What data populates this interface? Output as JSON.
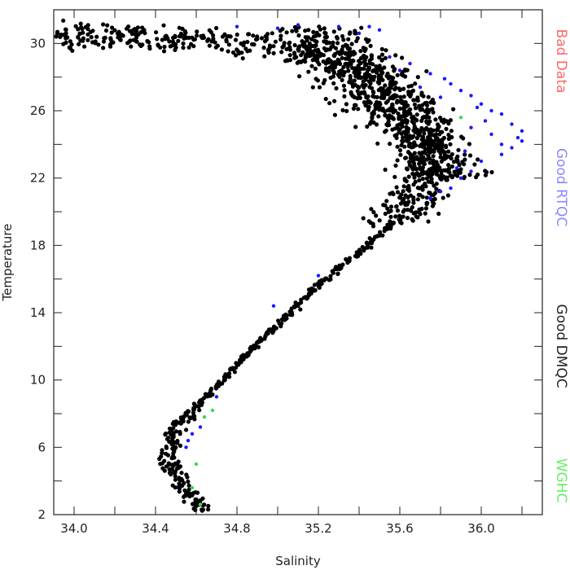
{
  "chart_data": {
    "type": "scatter",
    "xlabel": "Salinity",
    "ylabel": "Temperature",
    "xlim": [
      33.9,
      36.3
    ],
    "ylim": [
      2,
      32
    ],
    "xticks": [
      "34.0",
      "34.4",
      "34.8",
      "35.2",
      "35.6",
      "36.0"
    ],
    "xtick_values": [
      34.0,
      34.4,
      34.8,
      35.2,
      35.6,
      36.0
    ],
    "xminor": [
      34.2,
      34.6,
      35.0,
      35.4,
      35.8,
      36.2
    ],
    "yticks": [
      "2",
      "6",
      "10",
      "14",
      "18",
      "22",
      "26",
      "30"
    ],
    "ytick_values": [
      2,
      6,
      10,
      14,
      18,
      22,
      26,
      30
    ],
    "yminor": [
      4,
      8,
      12,
      16,
      20,
      24,
      28
    ],
    "grid": false,
    "legend_position": "right-outside-vertical",
    "legend": [
      {
        "label": "Bad Data",
        "color": "#ff6666"
      },
      {
        "label": "Good RTQC",
        "color": "#8888ff"
      },
      {
        "label": "Good DMQC",
        "color": "#222222"
      },
      {
        "label": "WGHC",
        "color": "#66ee66"
      }
    ],
    "series": [
      {
        "name": "Good RTQC",
        "color": "#1a1aff",
        "points": [
          [
            35.1,
            31.1
          ],
          [
            35.3,
            31.0
          ],
          [
            35.45,
            31.0
          ],
          [
            35.5,
            30.8
          ],
          [
            35.65,
            28.8
          ],
          [
            35.75,
            28.2
          ],
          [
            35.85,
            27.6
          ],
          [
            35.9,
            27.2
          ],
          [
            35.95,
            26.9
          ],
          [
            36.0,
            26.4
          ],
          [
            36.05,
            26.0
          ],
          [
            36.1,
            25.8
          ],
          [
            36.15,
            25.2
          ],
          [
            36.2,
            24.8
          ],
          [
            36.2,
            24.2
          ],
          [
            36.15,
            23.8
          ],
          [
            36.1,
            23.4
          ],
          [
            36.0,
            23.0
          ],
          [
            35.95,
            22.4
          ],
          [
            35.9,
            22.0
          ],
          [
            35.85,
            21.4
          ],
          [
            35.95,
            25.0
          ],
          [
            36.05,
            24.6
          ],
          [
            36.1,
            24.0
          ],
          [
            35.8,
            26.8
          ],
          [
            35.7,
            27.4
          ],
          [
            35.6,
            28.4
          ],
          [
            35.55,
            29.2
          ],
          [
            35.2,
            16.2
          ],
          [
            34.98,
            14.4
          ],
          [
            34.62,
            7.2
          ],
          [
            34.58,
            6.8
          ],
          [
            34.56,
            6.4
          ],
          [
            34.55,
            6.0
          ],
          [
            34.7,
            9.0
          ],
          [
            35.75,
            20.8
          ],
          [
            35.8,
            21.2
          ],
          [
            35.88,
            22.6
          ],
          [
            36.02,
            25.4
          ],
          [
            35.98,
            26.2
          ],
          [
            35.4,
            30.6
          ],
          [
            35.0,
            30.9
          ],
          [
            34.8,
            31.0
          ],
          [
            35.92,
            23.6
          ],
          [
            36.18,
            24.4
          ],
          [
            35.82,
            27.9
          ]
        ]
      },
      {
        "name": "WGHC",
        "color": "#33dd55",
        "points": [
          [
            34.68,
            8.2
          ],
          [
            34.64,
            7.8
          ],
          [
            34.6,
            5.0
          ],
          [
            34.58,
            3.6
          ],
          [
            34.62,
            2.6
          ],
          [
            35.9,
            25.6
          ]
        ]
      }
    ],
    "good_dmqc_curve": [
      [
        34.63,
        2.2
      ],
      [
        34.6,
        2.7
      ],
      [
        34.56,
        3.3
      ],
      [
        34.52,
        4.0
      ],
      [
        34.49,
        4.7
      ],
      [
        34.47,
        5.4
      ],
      [
        34.47,
        6.1
      ],
      [
        34.49,
        6.8
      ],
      [
        34.53,
        7.5
      ],
      [
        34.58,
        8.2
      ],
      [
        34.65,
        9.0
      ],
      [
        34.72,
        9.8
      ],
      [
        34.78,
        10.6
      ],
      [
        34.84,
        11.4
      ],
      [
        34.9,
        12.2
      ],
      [
        34.97,
        13.0
      ],
      [
        35.04,
        13.8
      ],
      [
        35.11,
        14.6
      ],
      [
        35.18,
        15.4
      ],
      [
        35.26,
        16.2
      ],
      [
        35.34,
        17.0
      ],
      [
        35.42,
        17.8
      ],
      [
        35.5,
        18.6
      ],
      [
        35.57,
        19.4
      ],
      [
        35.64,
        20.2
      ],
      [
        35.7,
        21.0
      ],
      [
        35.72,
        21.8
      ],
      [
        35.73,
        22.6
      ],
      [
        35.74,
        23.4
      ],
      [
        35.75,
        24.2
      ],
      [
        35.74,
        25.0
      ],
      [
        35.7,
        25.8
      ],
      [
        35.64,
        26.6
      ],
      [
        35.56,
        27.4
      ],
      [
        35.48,
        28.2
      ],
      [
        35.38,
        28.9
      ],
      [
        35.2,
        29.4
      ],
      [
        35.0,
        29.8
      ],
      [
        34.8,
        30.0
      ],
      [
        34.6,
        30.2
      ],
      [
        34.4,
        30.3
      ],
      [
        34.2,
        30.4
      ],
      [
        34.0,
        30.5
      ],
      [
        33.9,
        30.5
      ]
    ]
  }
}
